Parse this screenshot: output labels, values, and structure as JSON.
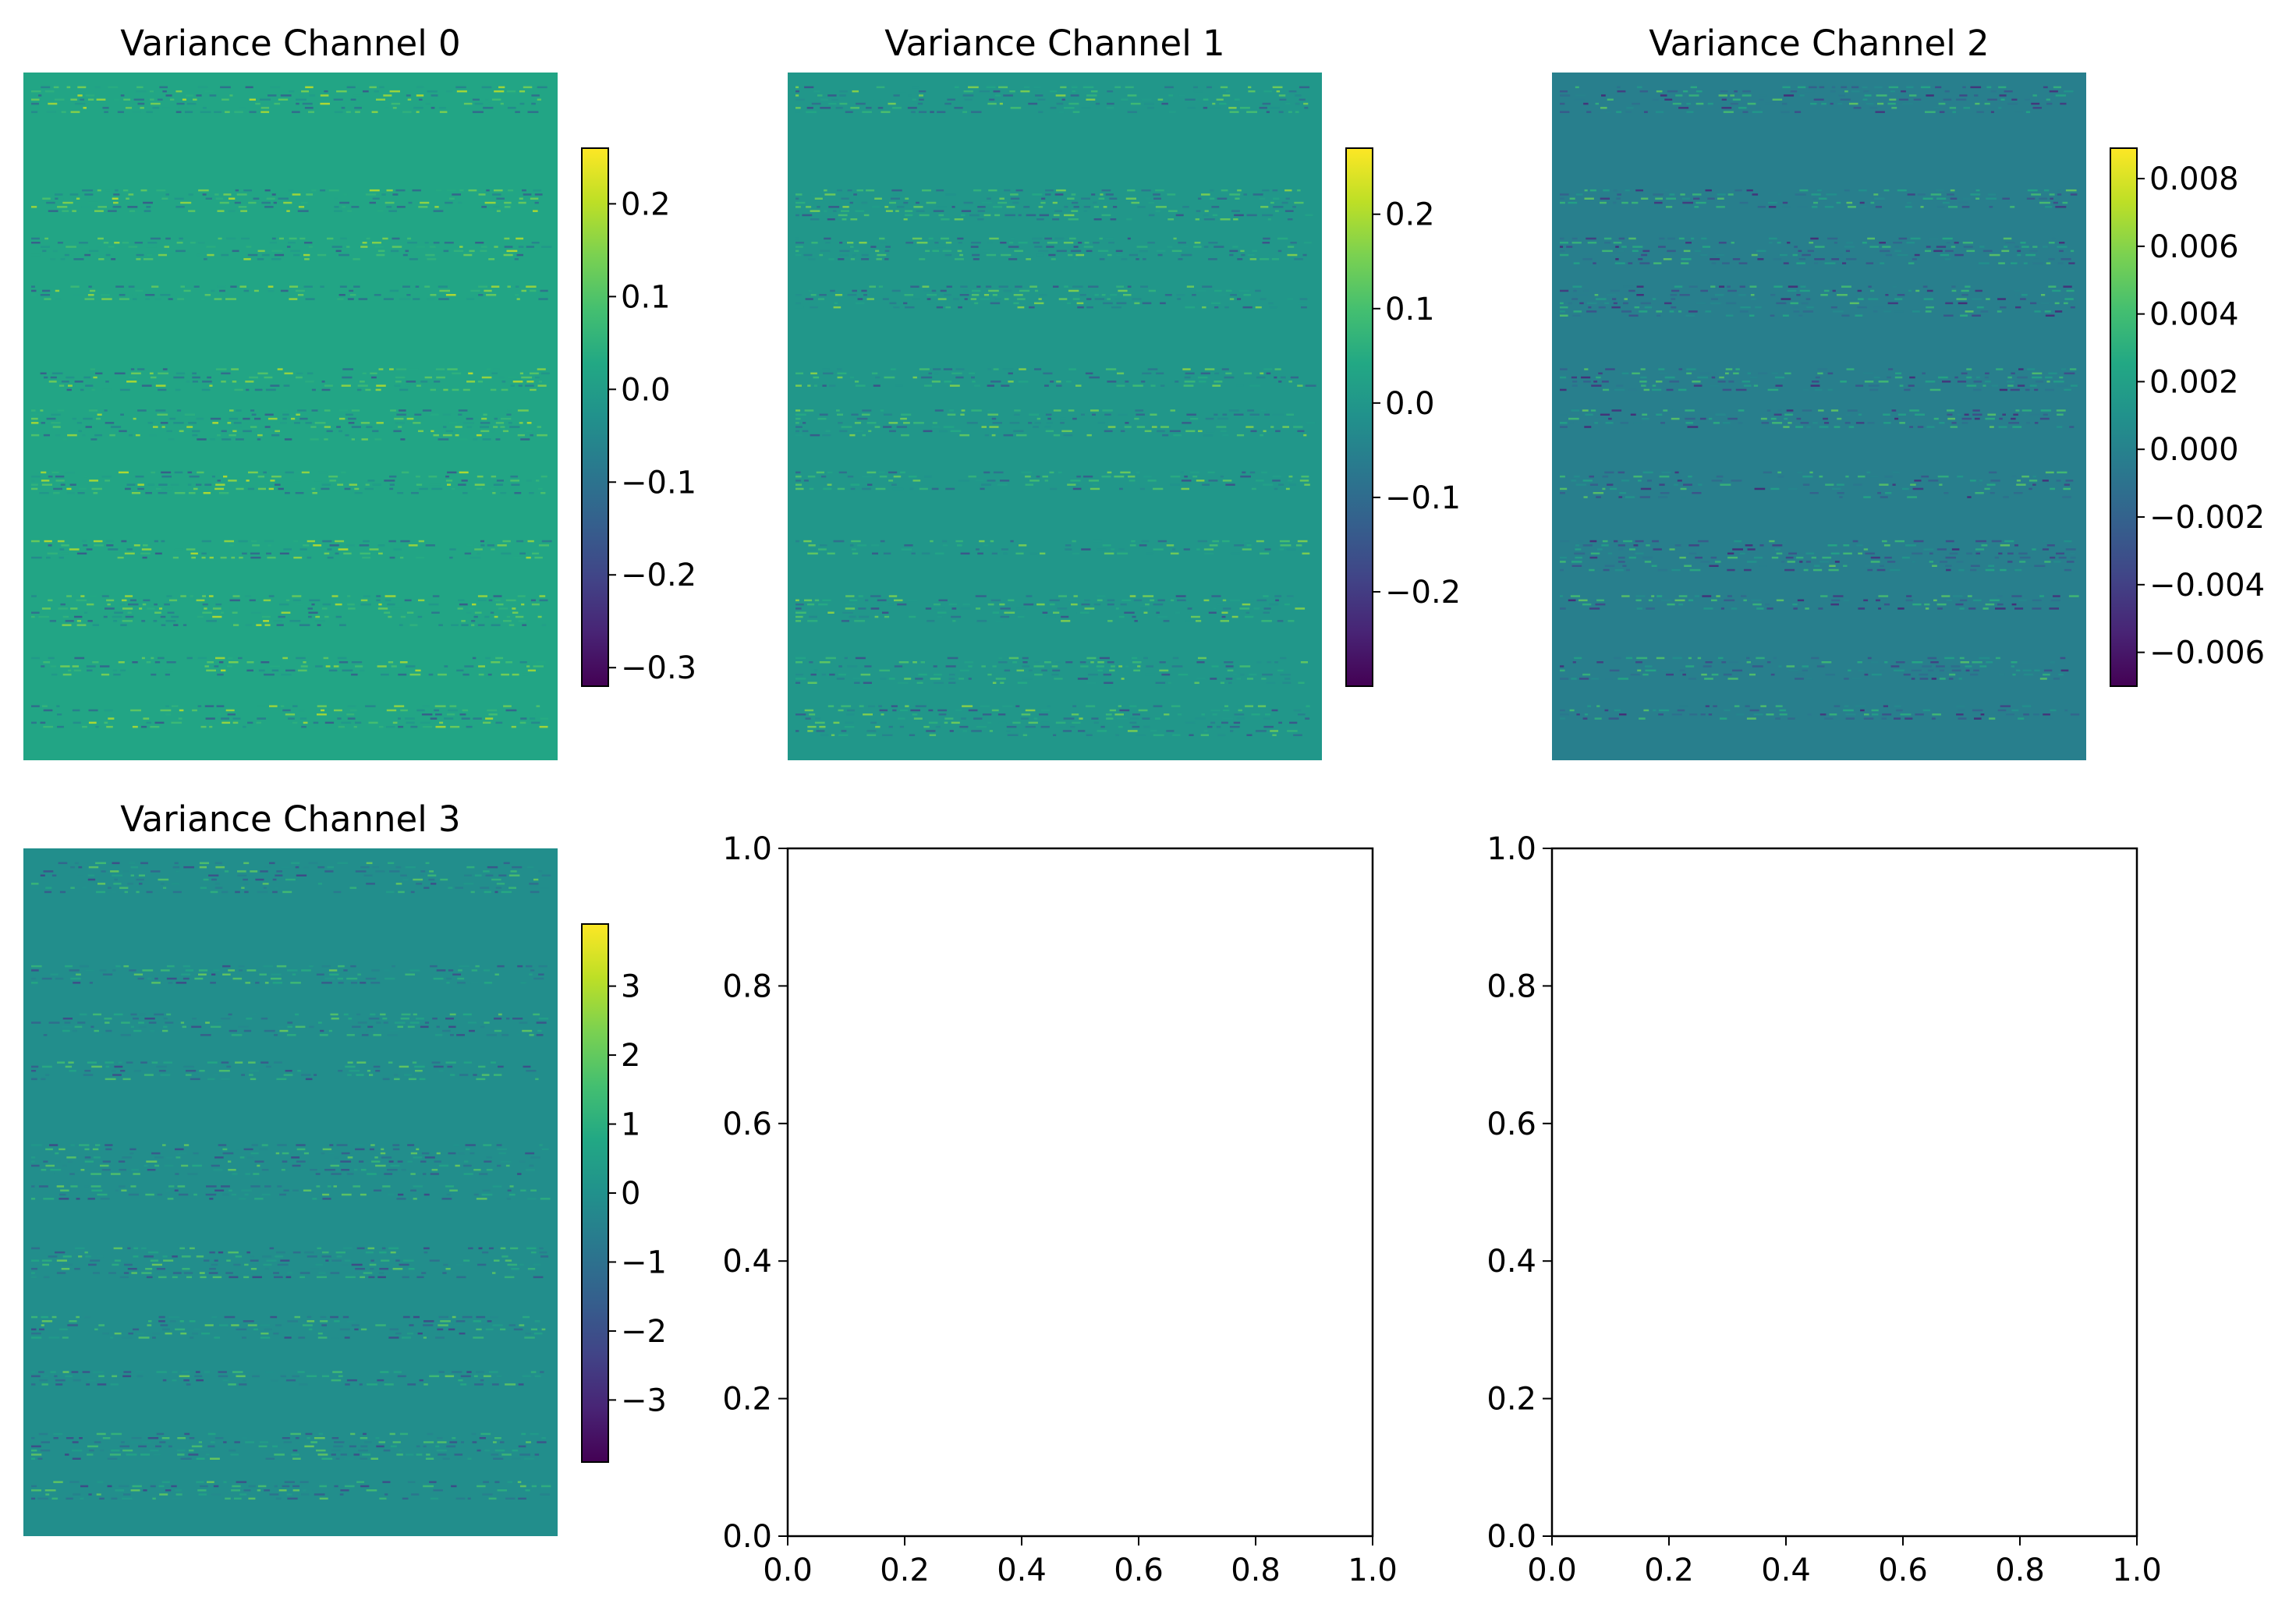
{
  "chart_data": [
    {
      "type": "heatmap",
      "title": "Variance Channel 0",
      "colormap": "viridis",
      "background_value": 0.02,
      "clim": [
        -0.32,
        0.26
      ],
      "colorbar_ticks": [
        0.2,
        0.1,
        0.0,
        -0.1,
        -0.2,
        -0.3
      ],
      "colorbar_tick_labels": [
        "0.2",
        "0.1",
        "0.0",
        "−0.1",
        "−0.2",
        "−0.3"
      ],
      "axes_visible": false
    },
    {
      "type": "heatmap",
      "title": "Variance Channel 1",
      "colormap": "viridis",
      "background_value": 0.0,
      "clim": [
        -0.3,
        0.27
      ],
      "colorbar_ticks": [
        0.2,
        0.1,
        0.0,
        -0.1,
        -0.2
      ],
      "colorbar_tick_labels": [
        "0.2",
        "0.1",
        "0.0",
        "−0.1",
        "−0.2"
      ],
      "axes_visible": false
    },
    {
      "type": "heatmap",
      "title": "Variance Channel 2",
      "colormap": "viridis",
      "background_value": -0.0002,
      "clim": [
        -0.007,
        0.0089
      ],
      "colorbar_ticks": [
        0.008,
        0.006,
        0.004,
        0.002,
        0.0,
        -0.002,
        -0.004,
        -0.006
      ],
      "colorbar_tick_labels": [
        "0.008",
        "0.006",
        "0.004",
        "0.002",
        "0.000",
        "−0.002",
        "−0.004",
        "−0.006"
      ],
      "axes_visible": false
    },
    {
      "type": "heatmap",
      "title": "Variance Channel 3",
      "colormap": "viridis",
      "background_value": -0.1,
      "clim": [
        -3.9,
        3.9
      ],
      "colorbar_ticks": [
        3,
        2,
        1,
        0,
        -1,
        -2,
        -3
      ],
      "colorbar_tick_labels": [
        "3",
        "2",
        "1",
        "0",
        "−1",
        "−2",
        "−3"
      ],
      "axes_visible": false
    },
    {
      "type": "line",
      "title": "",
      "series": [],
      "xlim": [
        0.0,
        1.0
      ],
      "ylim": [
        0.0,
        1.0
      ],
      "xticks": [
        0.0,
        0.2,
        0.4,
        0.6,
        0.8,
        1.0
      ],
      "xtick_labels": [
        "0.0",
        "0.2",
        "0.4",
        "0.6",
        "0.8",
        "1.0"
      ],
      "yticks": [
        0.0,
        0.2,
        0.4,
        0.6,
        0.8,
        1.0
      ],
      "ytick_labels": [
        "0.0",
        "0.2",
        "0.4",
        "0.6",
        "0.8",
        "1.0"
      ]
    },
    {
      "type": "line",
      "title": "",
      "series": [],
      "xlim": [
        0.0,
        1.0
      ],
      "ylim": [
        0.0,
        1.0
      ],
      "xticks": [
        0.0,
        0.2,
        0.4,
        0.6,
        0.8,
        1.0
      ],
      "xtick_labels": [
        "0.0",
        "0.2",
        "0.4",
        "0.6",
        "0.8",
        "1.0"
      ],
      "yticks": [
        0.0,
        0.2,
        0.4,
        0.6,
        0.8,
        1.0
      ],
      "ytick_labels": [
        "0.0",
        "0.2",
        "0.4",
        "0.6",
        "0.8",
        "1.0"
      ]
    }
  ]
}
